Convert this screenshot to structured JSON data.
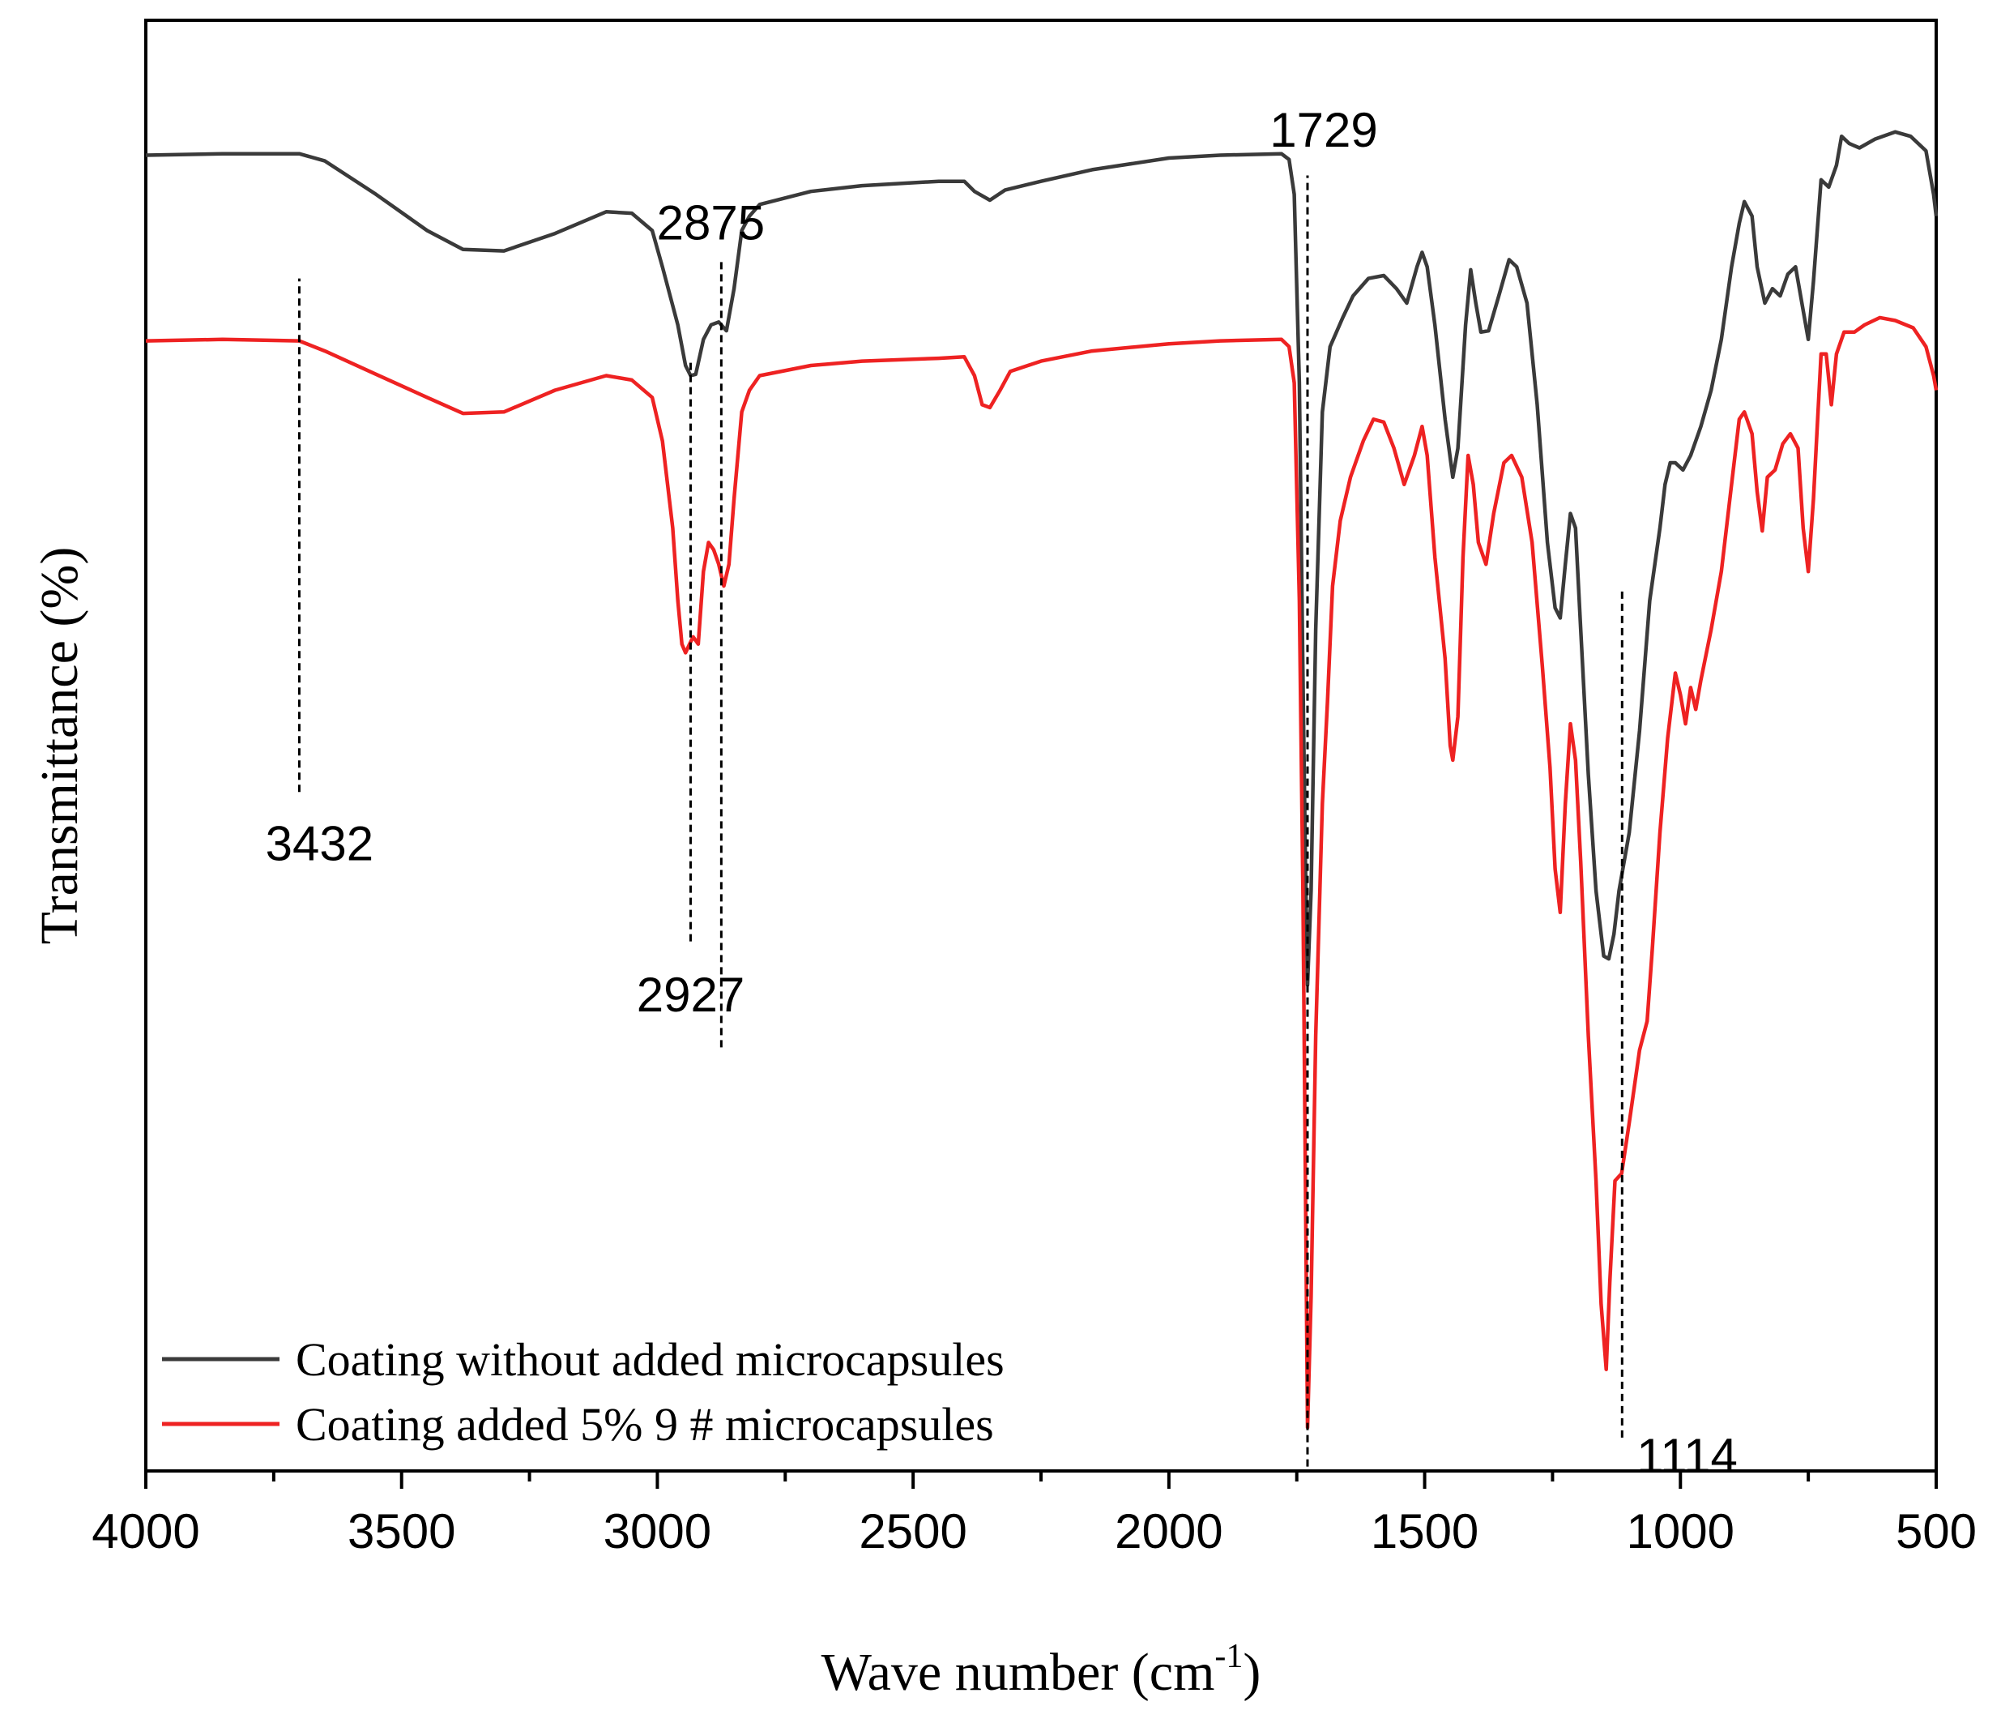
{
  "chart_data": {
    "type": "line",
    "xlabel": "Wave number (cm",
    "xlabel_sup": "-1",
    "xlabel_end": ")",
    "ylabel": "Transmittance (%)",
    "xlim": [
      4000,
      500
    ],
    "ylim": [
      0,
      100
    ],
    "x_reversed": true,
    "x_ticks": [
      {
        "value": 4000,
        "label": "4000"
      },
      {
        "value": 3500,
        "label": "3500"
      },
      {
        "value": 3000,
        "label": "3000"
      },
      {
        "value": 2500,
        "label": "2500"
      },
      {
        "value": 2000,
        "label": "2000"
      },
      {
        "value": 1500,
        "label": "1500"
      },
      {
        "value": 1000,
        "label": "1000"
      },
      {
        "value": 500,
        "label": "500"
      }
    ],
    "grid": false,
    "legend_position": "bottom-left",
    "series": [
      {
        "name": "Coating without added microcapsules",
        "color": "#3a3a3a",
        "points": [
          [
            4000,
            90.7
          ],
          [
            3850,
            90.8
          ],
          [
            3700,
            90.8
          ],
          [
            3650,
            90.3
          ],
          [
            3550,
            88.0
          ],
          [
            3450,
            85.5
          ],
          [
            3380,
            84.2
          ],
          [
            3300,
            84.1
          ],
          [
            3200,
            85.3
          ],
          [
            3100,
            86.8
          ],
          [
            3050,
            86.7
          ],
          [
            3010,
            85.5
          ],
          [
            2990,
            83.0
          ],
          [
            2960,
            79.0
          ],
          [
            2945,
            76.2
          ],
          [
            2935,
            75.5
          ],
          [
            2925,
            75.6
          ],
          [
            2910,
            78.0
          ],
          [
            2895,
            79.0
          ],
          [
            2880,
            79.2
          ],
          [
            2865,
            78.6
          ],
          [
            2850,
            81.5
          ],
          [
            2835,
            85.5
          ],
          [
            2820,
            86.5
          ],
          [
            2800,
            87.3
          ],
          [
            2700,
            88.2
          ],
          [
            2600,
            88.6
          ],
          [
            2450,
            88.9
          ],
          [
            2400,
            88.9
          ],
          [
            2380,
            88.2
          ],
          [
            2350,
            87.6
          ],
          [
            2320,
            88.3
          ],
          [
            2250,
            88.9
          ],
          [
            2150,
            89.7
          ],
          [
            2000,
            90.5
          ],
          [
            1900,
            90.7
          ],
          [
            1780,
            90.8
          ],
          [
            1765,
            90.4
          ],
          [
            1755,
            88.0
          ],
          [
            1745,
            75.0
          ],
          [
            1738,
            55.0
          ],
          [
            1733,
            42.0
          ],
          [
            1729,
            33.5
          ],
          [
            1722,
            40.0
          ],
          [
            1713,
            58.0
          ],
          [
            1700,
            73.0
          ],
          [
            1685,
            77.5
          ],
          [
            1660,
            79.5
          ],
          [
            1640,
            81.0
          ],
          [
            1610,
            82.2
          ],
          [
            1580,
            82.4
          ],
          [
            1555,
            81.5
          ],
          [
            1535,
            80.5
          ],
          [
            1515,
            83.0
          ],
          [
            1505,
            84.0
          ],
          [
            1495,
            83.0
          ],
          [
            1480,
            79.0
          ],
          [
            1460,
            72.5
          ],
          [
            1445,
            68.5
          ],
          [
            1435,
            70.5
          ],
          [
            1420,
            79.0
          ],
          [
            1410,
            82.8
          ],
          [
            1400,
            80.5
          ],
          [
            1390,
            78.5
          ],
          [
            1375,
            78.6
          ],
          [
            1355,
            81.0
          ],
          [
            1335,
            83.5
          ],
          [
            1320,
            83.0
          ],
          [
            1300,
            80.5
          ],
          [
            1280,
            73.5
          ],
          [
            1260,
            64.0
          ],
          [
            1245,
            59.5
          ],
          [
            1235,
            58.8
          ],
          [
            1225,
            62.5
          ],
          [
            1215,
            66.0
          ],
          [
            1205,
            65.0
          ],
          [
            1195,
            58.0
          ],
          [
            1180,
            48.0
          ],
          [
            1165,
            40.0
          ],
          [
            1150,
            35.5
          ],
          [
            1140,
            35.3
          ],
          [
            1130,
            37.0
          ],
          [
            1120,
            40.0
          ],
          [
            1100,
            44.0
          ],
          [
            1080,
            51.0
          ],
          [
            1060,
            60.0
          ],
          [
            1040,
            65.0
          ],
          [
            1030,
            68.0
          ],
          [
            1020,
            69.5
          ],
          [
            1010,
            69.5
          ],
          [
            995,
            69.0
          ],
          [
            980,
            70.0
          ],
          [
            960,
            72.0
          ],
          [
            940,
            74.5
          ],
          [
            920,
            78.0
          ],
          [
            900,
            83.0
          ],
          [
            885,
            86.0
          ],
          [
            875,
            87.5
          ],
          [
            860,
            86.5
          ],
          [
            850,
            83.0
          ],
          [
            835,
            80.5
          ],
          [
            820,
            81.5
          ],
          [
            805,
            81.0
          ],
          [
            790,
            82.5
          ],
          [
            775,
            83.0
          ],
          [
            760,
            80.0
          ],
          [
            750,
            78.0
          ],
          [
            740,
            82.0
          ],
          [
            725,
            89.0
          ],
          [
            710,
            88.5
          ],
          [
            695,
            90.0
          ],
          [
            685,
            92.0
          ],
          [
            670,
            91.5
          ],
          [
            650,
            91.2
          ],
          [
            620,
            91.8
          ],
          [
            580,
            92.3
          ],
          [
            550,
            92.0
          ],
          [
            520,
            91.0
          ],
          [
            505,
            88.0
          ],
          [
            500,
            86.5
          ]
        ]
      },
      {
        "name": "Coating added 5% 9 # microcapsules",
        "color": "#ee2222",
        "points": [
          [
            4000,
            77.9
          ],
          [
            3850,
            78.0
          ],
          [
            3700,
            77.9
          ],
          [
            3650,
            77.2
          ],
          [
            3550,
            75.6
          ],
          [
            3450,
            74.0
          ],
          [
            3380,
            72.9
          ],
          [
            3300,
            73.0
          ],
          [
            3200,
            74.5
          ],
          [
            3100,
            75.5
          ],
          [
            3050,
            75.2
          ],
          [
            3010,
            74.0
          ],
          [
            2990,
            71.0
          ],
          [
            2970,
            65.0
          ],
          [
            2960,
            60.0
          ],
          [
            2952,
            57.0
          ],
          [
            2945,
            56.4
          ],
          [
            2937,
            57.0
          ],
          [
            2930,
            57.5
          ],
          [
            2920,
            57.0
          ],
          [
            2910,
            62.0
          ],
          [
            2900,
            64.0
          ],
          [
            2890,
            63.5
          ],
          [
            2880,
            62.5
          ],
          [
            2870,
            61.0
          ],
          [
            2860,
            62.5
          ],
          [
            2850,
            67.0
          ],
          [
            2835,
            73.0
          ],
          [
            2820,
            74.5
          ],
          [
            2800,
            75.5
          ],
          [
            2700,
            76.2
          ],
          [
            2600,
            76.5
          ],
          [
            2450,
            76.7
          ],
          [
            2400,
            76.8
          ],
          [
            2380,
            75.5
          ],
          [
            2365,
            73.5
          ],
          [
            2350,
            73.3
          ],
          [
            2330,
            74.5
          ],
          [
            2310,
            75.8
          ],
          [
            2250,
            76.5
          ],
          [
            2150,
            77.2
          ],
          [
            2000,
            77.7
          ],
          [
            1900,
            77.9
          ],
          [
            1780,
            78.0
          ],
          [
            1765,
            77.5
          ],
          [
            1755,
            75.0
          ],
          [
            1745,
            60.0
          ],
          [
            1738,
            40.0
          ],
          [
            1733,
            20.0
          ],
          [
            1729,
            3.0
          ],
          [
            1722,
            12.0
          ],
          [
            1713,
            30.0
          ],
          [
            1700,
            46.0
          ],
          [
            1690,
            53.0
          ],
          [
            1680,
            61.0
          ],
          [
            1665,
            65.5
          ],
          [
            1645,
            68.5
          ],
          [
            1620,
            71.0
          ],
          [
            1600,
            72.5
          ],
          [
            1580,
            72.3
          ],
          [
            1560,
            70.5
          ],
          [
            1540,
            68.0
          ],
          [
            1520,
            70.0
          ],
          [
            1505,
            72.0
          ],
          [
            1495,
            70.0
          ],
          [
            1480,
            63.0
          ],
          [
            1460,
            56.0
          ],
          [
            1450,
            50.0
          ],
          [
            1445,
            49.0
          ],
          [
            1435,
            52.0
          ],
          [
            1425,
            63.0
          ],
          [
            1415,
            70.0
          ],
          [
            1405,
            68.0
          ],
          [
            1395,
            64.0
          ],
          [
            1380,
            62.5
          ],
          [
            1365,
            66.0
          ],
          [
            1345,
            69.5
          ],
          [
            1330,
            70.0
          ],
          [
            1310,
            68.5
          ],
          [
            1290,
            64.0
          ],
          [
            1270,
            55.5
          ],
          [
            1255,
            48.5
          ],
          [
            1245,
            41.5
          ],
          [
            1235,
            38.5
          ],
          [
            1225,
            46.0
          ],
          [
            1215,
            51.5
          ],
          [
            1205,
            49.0
          ],
          [
            1195,
            42.0
          ],
          [
            1180,
            30.0
          ],
          [
            1165,
            20.0
          ],
          [
            1155,
            11.5
          ],
          [
            1145,
            7.0
          ],
          [
            1138,
            13.0
          ],
          [
            1128,
            20.0
          ],
          [
            1115,
            20.5
          ],
          [
            1100,
            24.0
          ],
          [
            1080,
            29.0
          ],
          [
            1065,
            31.0
          ],
          [
            1055,
            36.0
          ],
          [
            1040,
            44.0
          ],
          [
            1025,
            50.5
          ],
          [
            1010,
            55.0
          ],
          [
            1000,
            53.5
          ],
          [
            990,
            51.5
          ],
          [
            980,
            54.0
          ],
          [
            970,
            52.5
          ],
          [
            960,
            54.5
          ],
          [
            940,
            58.0
          ],
          [
            920,
            62.0
          ],
          [
            900,
            68.0
          ],
          [
            885,
            72.5
          ],
          [
            875,
            73.0
          ],
          [
            860,
            71.5
          ],
          [
            850,
            67.5
          ],
          [
            840,
            64.8
          ],
          [
            830,
            68.5
          ],
          [
            815,
            69.0
          ],
          [
            800,
            70.8
          ],
          [
            785,
            71.5
          ],
          [
            770,
            70.5
          ],
          [
            760,
            65.0
          ],
          [
            750,
            62.0
          ],
          [
            740,
            67.0
          ],
          [
            725,
            77.0
          ],
          [
            715,
            77.0
          ],
          [
            705,
            73.5
          ],
          [
            695,
            77.0
          ],
          [
            680,
            78.5
          ],
          [
            660,
            78.5
          ],
          [
            640,
            79.0
          ],
          [
            610,
            79.5
          ],
          [
            580,
            79.3
          ],
          [
            545,
            78.8
          ],
          [
            520,
            77.5
          ],
          [
            505,
            75.5
          ],
          [
            500,
            74.5
          ]
        ]
      }
    ],
    "annotations": [
      {
        "label": "3432",
        "x": 3700,
        "line_y": [
          46.8,
          82.2
        ],
        "label_y": 43.2,
        "label_anchor": "middle",
        "label_dx": 25
      },
      {
        "label": "2875",
        "x": 2875,
        "line_y": [
          29.2,
          83.5
        ],
        "label_y": 86.0,
        "label_anchor": "middle",
        "label_dx": -13
      },
      {
        "label": "2927",
        "x": 2935,
        "line_y": [
          36.5,
          76.5
        ],
        "label_y": 32.8,
        "label_anchor": "middle",
        "label_dx": 0
      },
      {
        "label": "1729",
        "x": 1729,
        "line_y": [
          0.3,
          89.3
        ],
        "label_y": 92.4,
        "label_anchor": "middle",
        "label_dx": 20
      },
      {
        "label": "1114",
        "x": 1114,
        "line_y": [
          2.3,
          60.8
        ],
        "label_y": 1.0,
        "label_anchor": "start",
        "label_dx": 18
      }
    ]
  }
}
